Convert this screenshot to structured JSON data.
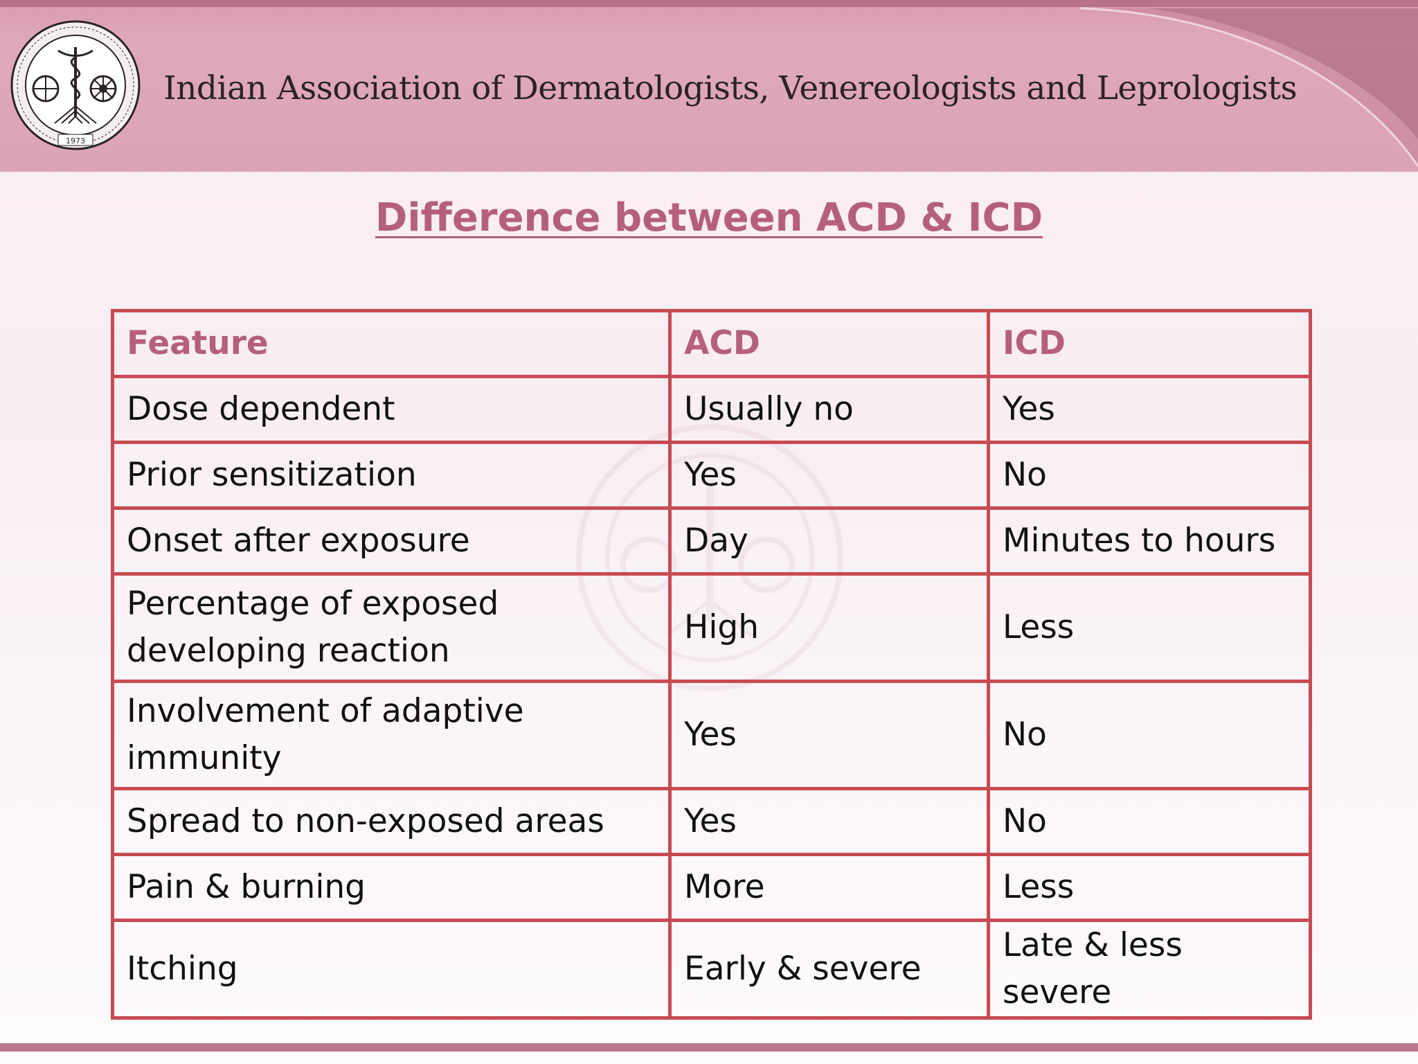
{
  "header": {
    "organization": "Indian Association of Dermatologists, Venereologists and Leprologists",
    "logo_icon": "association-emblem-icon",
    "logo_year": "1973"
  },
  "slide": {
    "title": "Difference between ACD & ICD"
  },
  "table": {
    "headers": [
      "Feature",
      "ACD",
      "ICD"
    ],
    "rows": [
      [
        "Dose dependent",
        "Usually no",
        "Yes"
      ],
      [
        "Prior sensitization",
        "Yes",
        "No"
      ],
      [
        "Onset after exposure",
        "Day",
        "Minutes to hours"
      ],
      [
        "Percentage of exposed developing reaction",
        "High",
        "Less"
      ],
      [
        "Involvement of adaptive immunity",
        "Yes",
        "No"
      ],
      [
        "Spread to non-exposed areas",
        "Yes",
        "No"
      ],
      [
        "Pain & burning",
        "More",
        "Less"
      ],
      [
        "Itching",
        "Early & severe",
        "Late & less severe"
      ]
    ]
  },
  "colors": {
    "header_band": "#dba4b6",
    "accent": "#b5607a",
    "table_border": "#c84b52"
  }
}
